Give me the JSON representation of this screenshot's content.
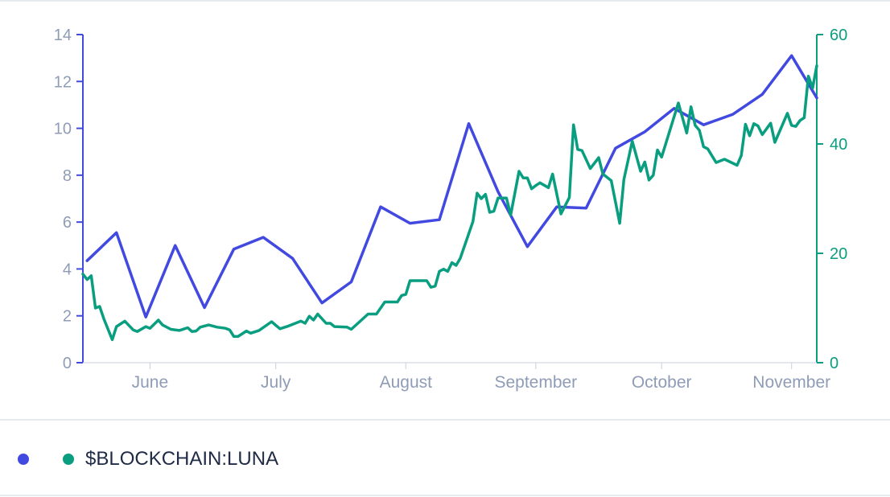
{
  "colors": {
    "series_a": "#4249e0",
    "series_b": "#0a9e80",
    "tick_text": "#8f9cb6",
    "axis_left": "#4249e0",
    "axis_right": "#0a9e80"
  },
  "legend": {
    "label": "$BLOCKCHAIN:LUNA"
  },
  "chart_data": {
    "type": "line",
    "x_axis": {
      "type": "date",
      "tick_labels": [
        "June",
        "July",
        "August",
        "September",
        "October",
        "November"
      ],
      "tick_dates": [
        "2021-06-01",
        "2021-07-01",
        "2021-08-01",
        "2021-09-01",
        "2021-10-01",
        "2021-11-01"
      ],
      "range": [
        "2021-05-16",
        "2021-11-07"
      ]
    },
    "y_left": {
      "ticks": [
        0,
        2,
        4,
        6,
        8,
        10,
        12,
        14
      ],
      "range": [
        0,
        14
      ]
    },
    "y_right": {
      "ticks": [
        0,
        20,
        40,
        60
      ],
      "range": [
        0,
        60
      ]
    },
    "grid": false,
    "legend_position": "bottom-left",
    "series": [
      {
        "axis": "left",
        "points": [
          [
            "2021-05-17",
            4.35
          ],
          [
            "2021-05-24",
            5.55
          ],
          [
            "2021-05-31",
            1.95
          ],
          [
            "2021-06-07",
            5.0
          ],
          [
            "2021-06-14",
            2.35
          ],
          [
            "2021-06-21",
            4.85
          ],
          [
            "2021-06-28",
            5.35
          ],
          [
            "2021-07-05",
            4.45
          ],
          [
            "2021-07-12",
            2.55
          ],
          [
            "2021-07-19",
            3.45
          ],
          [
            "2021-07-26",
            6.65
          ],
          [
            "2021-08-02",
            5.95
          ],
          [
            "2021-08-09",
            6.1
          ],
          [
            "2021-08-16",
            10.2
          ],
          [
            "2021-08-23",
            7.3
          ],
          [
            "2021-08-30",
            4.95
          ],
          [
            "2021-09-06",
            6.65
          ],
          [
            "2021-09-13",
            6.6
          ],
          [
            "2021-09-20",
            9.15
          ],
          [
            "2021-09-27",
            9.85
          ],
          [
            "2021-10-04",
            10.85
          ],
          [
            "2021-10-11",
            10.15
          ],
          [
            "2021-10-18",
            10.6
          ],
          [
            "2021-10-25",
            11.45
          ],
          [
            "2021-11-01",
            13.1
          ],
          [
            "2021-11-07",
            11.3
          ]
        ]
      },
      {
        "axis": "right",
        "points": [
          [
            "2021-05-16",
            16.2
          ],
          [
            "2021-05-17",
            15.2
          ],
          [
            "2021-05-18",
            15.9
          ],
          [
            "2021-05-19",
            10.0
          ],
          [
            "2021-05-20",
            10.3
          ],
          [
            "2021-05-21",
            8.0
          ],
          [
            "2021-05-23",
            4.2
          ],
          [
            "2021-05-24",
            6.6
          ],
          [
            "2021-05-26",
            7.6
          ],
          [
            "2021-05-28",
            6.0
          ],
          [
            "2021-05-29",
            5.7
          ],
          [
            "2021-05-31",
            6.6
          ],
          [
            "2021-06-01",
            6.3
          ],
          [
            "2021-06-03",
            7.8
          ],
          [
            "2021-06-04",
            6.9
          ],
          [
            "2021-06-06",
            6.1
          ],
          [
            "2021-06-08",
            5.9
          ],
          [
            "2021-06-10",
            6.4
          ],
          [
            "2021-06-11",
            5.7
          ],
          [
            "2021-06-12",
            5.8
          ],
          [
            "2021-06-13",
            6.5
          ],
          [
            "2021-06-15",
            6.9
          ],
          [
            "2021-06-17",
            6.5
          ],
          [
            "2021-06-19",
            6.3
          ],
          [
            "2021-06-20",
            6.0
          ],
          [
            "2021-06-21",
            4.8
          ],
          [
            "2021-06-22",
            4.8
          ],
          [
            "2021-06-24",
            5.8
          ],
          [
            "2021-06-25",
            5.4
          ],
          [
            "2021-06-27",
            5.9
          ],
          [
            "2021-06-30",
            7.5
          ],
          [
            "2021-07-02",
            6.2
          ],
          [
            "2021-07-04",
            6.7
          ],
          [
            "2021-07-07",
            7.6
          ],
          [
            "2021-07-08",
            7.2
          ],
          [
            "2021-07-09",
            8.5
          ],
          [
            "2021-07-10",
            7.8
          ],
          [
            "2021-07-11",
            8.9
          ],
          [
            "2021-07-13",
            7.2
          ],
          [
            "2021-07-14",
            7.2
          ],
          [
            "2021-07-15",
            6.6
          ],
          [
            "2021-07-18",
            6.5
          ],
          [
            "2021-07-19",
            6.1
          ],
          [
            "2021-07-23",
            8.9
          ],
          [
            "2021-07-25",
            8.9
          ],
          [
            "2021-07-27",
            11.1
          ],
          [
            "2021-07-30",
            11.1
          ],
          [
            "2021-07-31",
            12.3
          ],
          [
            "2021-08-01",
            12.5
          ],
          [
            "2021-08-02",
            15.0
          ],
          [
            "2021-08-05",
            15.0
          ],
          [
            "2021-08-06",
            15.0
          ],
          [
            "2021-08-07",
            13.8
          ],
          [
            "2021-08-08",
            14.0
          ],
          [
            "2021-08-09",
            16.7
          ],
          [
            "2021-08-10",
            17.1
          ],
          [
            "2021-08-11",
            16.7
          ],
          [
            "2021-08-12",
            18.3
          ],
          [
            "2021-08-13",
            17.8
          ],
          [
            "2021-08-14",
            19.1
          ],
          [
            "2021-08-17",
            25.8
          ],
          [
            "2021-08-18",
            31.0
          ],
          [
            "2021-08-19",
            30.0
          ],
          [
            "2021-08-20",
            30.8
          ],
          [
            "2021-08-21",
            27.5
          ],
          [
            "2021-08-22",
            27.7
          ],
          [
            "2021-08-23",
            30.1
          ],
          [
            "2021-08-25",
            30.1
          ],
          [
            "2021-08-26",
            27.0
          ],
          [
            "2021-08-28",
            35.0
          ],
          [
            "2021-08-29",
            33.8
          ],
          [
            "2021-08-30",
            33.8
          ],
          [
            "2021-08-31",
            31.8
          ],
          [
            "2021-09-01",
            32.4
          ],
          [
            "2021-09-02",
            32.9
          ],
          [
            "2021-09-04",
            32.0
          ],
          [
            "2021-09-05",
            34.5
          ],
          [
            "2021-09-07",
            27.2
          ],
          [
            "2021-09-09",
            30.2
          ],
          [
            "2021-09-10",
            43.5
          ],
          [
            "2021-09-11",
            39.0
          ],
          [
            "2021-09-12",
            38.8
          ],
          [
            "2021-09-14",
            35.5
          ],
          [
            "2021-09-16",
            37.5
          ],
          [
            "2021-09-17",
            34.5
          ],
          [
            "2021-09-19",
            33.3
          ],
          [
            "2021-09-21",
            25.5
          ],
          [
            "2021-09-22",
            33.5
          ],
          [
            "2021-09-24",
            40.5
          ],
          [
            "2021-09-26",
            35.0
          ],
          [
            "2021-09-27",
            36.7
          ],
          [
            "2021-09-28",
            33.4
          ],
          [
            "2021-09-29",
            34.3
          ],
          [
            "2021-09-30",
            38.9
          ],
          [
            "2021-10-01",
            37.6
          ],
          [
            "2021-10-05",
            47.5
          ],
          [
            "2021-10-07",
            42.0
          ],
          [
            "2021-10-08",
            46.8
          ],
          [
            "2021-10-09",
            43.4
          ],
          [
            "2021-10-10",
            42.5
          ],
          [
            "2021-10-11",
            39.5
          ],
          [
            "2021-10-12",
            39.1
          ],
          [
            "2021-10-14",
            36.6
          ],
          [
            "2021-10-16",
            37.2
          ],
          [
            "2021-10-19",
            36.1
          ],
          [
            "2021-10-20",
            37.9
          ],
          [
            "2021-10-21",
            43.6
          ],
          [
            "2021-10-22",
            41.5
          ],
          [
            "2021-10-23",
            43.7
          ],
          [
            "2021-10-24",
            43.3
          ],
          [
            "2021-10-25",
            41.7
          ],
          [
            "2021-10-27",
            43.8
          ],
          [
            "2021-10-28",
            40.3
          ],
          [
            "2021-10-31",
            45.6
          ],
          [
            "2021-11-01",
            43.4
          ],
          [
            "2021-11-02",
            43.2
          ],
          [
            "2021-11-03",
            44.3
          ],
          [
            "2021-11-04",
            44.8
          ],
          [
            "2021-11-05",
            52.4
          ],
          [
            "2021-11-06",
            50.2
          ],
          [
            "2021-11-07",
            54.3
          ]
        ]
      }
    ]
  }
}
